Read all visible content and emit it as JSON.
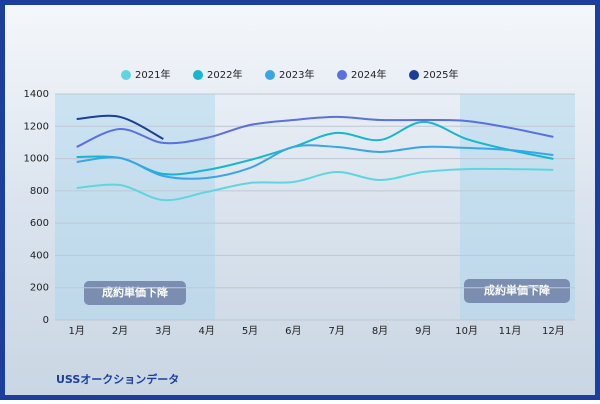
{
  "chart_data": {
    "type": "line",
    "categories": [
      "1月",
      "2月",
      "3月",
      "4月",
      "5月",
      "6月",
      "7月",
      "8月",
      "9月",
      "10月",
      "11月",
      "12月"
    ],
    "series": [
      {
        "name": "2021年",
        "color": "#5fd6df",
        "values": [
          818,
          836,
          743,
          793,
          849,
          855,
          917,
          867,
          917,
          935,
          935,
          930
        ]
      },
      {
        "name": "2022年",
        "color": "#16b6cf",
        "values": [
          1010,
          1004,
          905,
          929,
          991,
          1072,
          1159,
          1115,
          1227,
          1121,
          1053,
          998
        ]
      },
      {
        "name": "2023年",
        "color": "#38a6e6",
        "values": [
          979,
          1004,
          892,
          880,
          942,
          1072,
          1072,
          1041,
          1072,
          1066,
          1053,
          1022
        ]
      },
      {
        "name": "2024年",
        "color": "#5a6fe0",
        "values": [
          1072,
          1183,
          1097,
          1128,
          1208,
          1239,
          1258,
          1239,
          1239,
          1233,
          1190,
          1134
        ]
      },
      {
        "name": "2025年",
        "color": "#1a3e9a",
        "values": [
          1245,
          1258,
          1121,
          null,
          null,
          null,
          null,
          null,
          null,
          null,
          null,
          null
        ]
      }
    ],
    "ylim": [
      0,
      1400
    ],
    "yticks": [
      0,
      200,
      400,
      600,
      800,
      1000,
      1200,
      1400
    ],
    "grid": true,
    "annotations": [
      "成約単価下降",
      "成約単価下降"
    ],
    "source": "USSオークションデータ"
  }
}
